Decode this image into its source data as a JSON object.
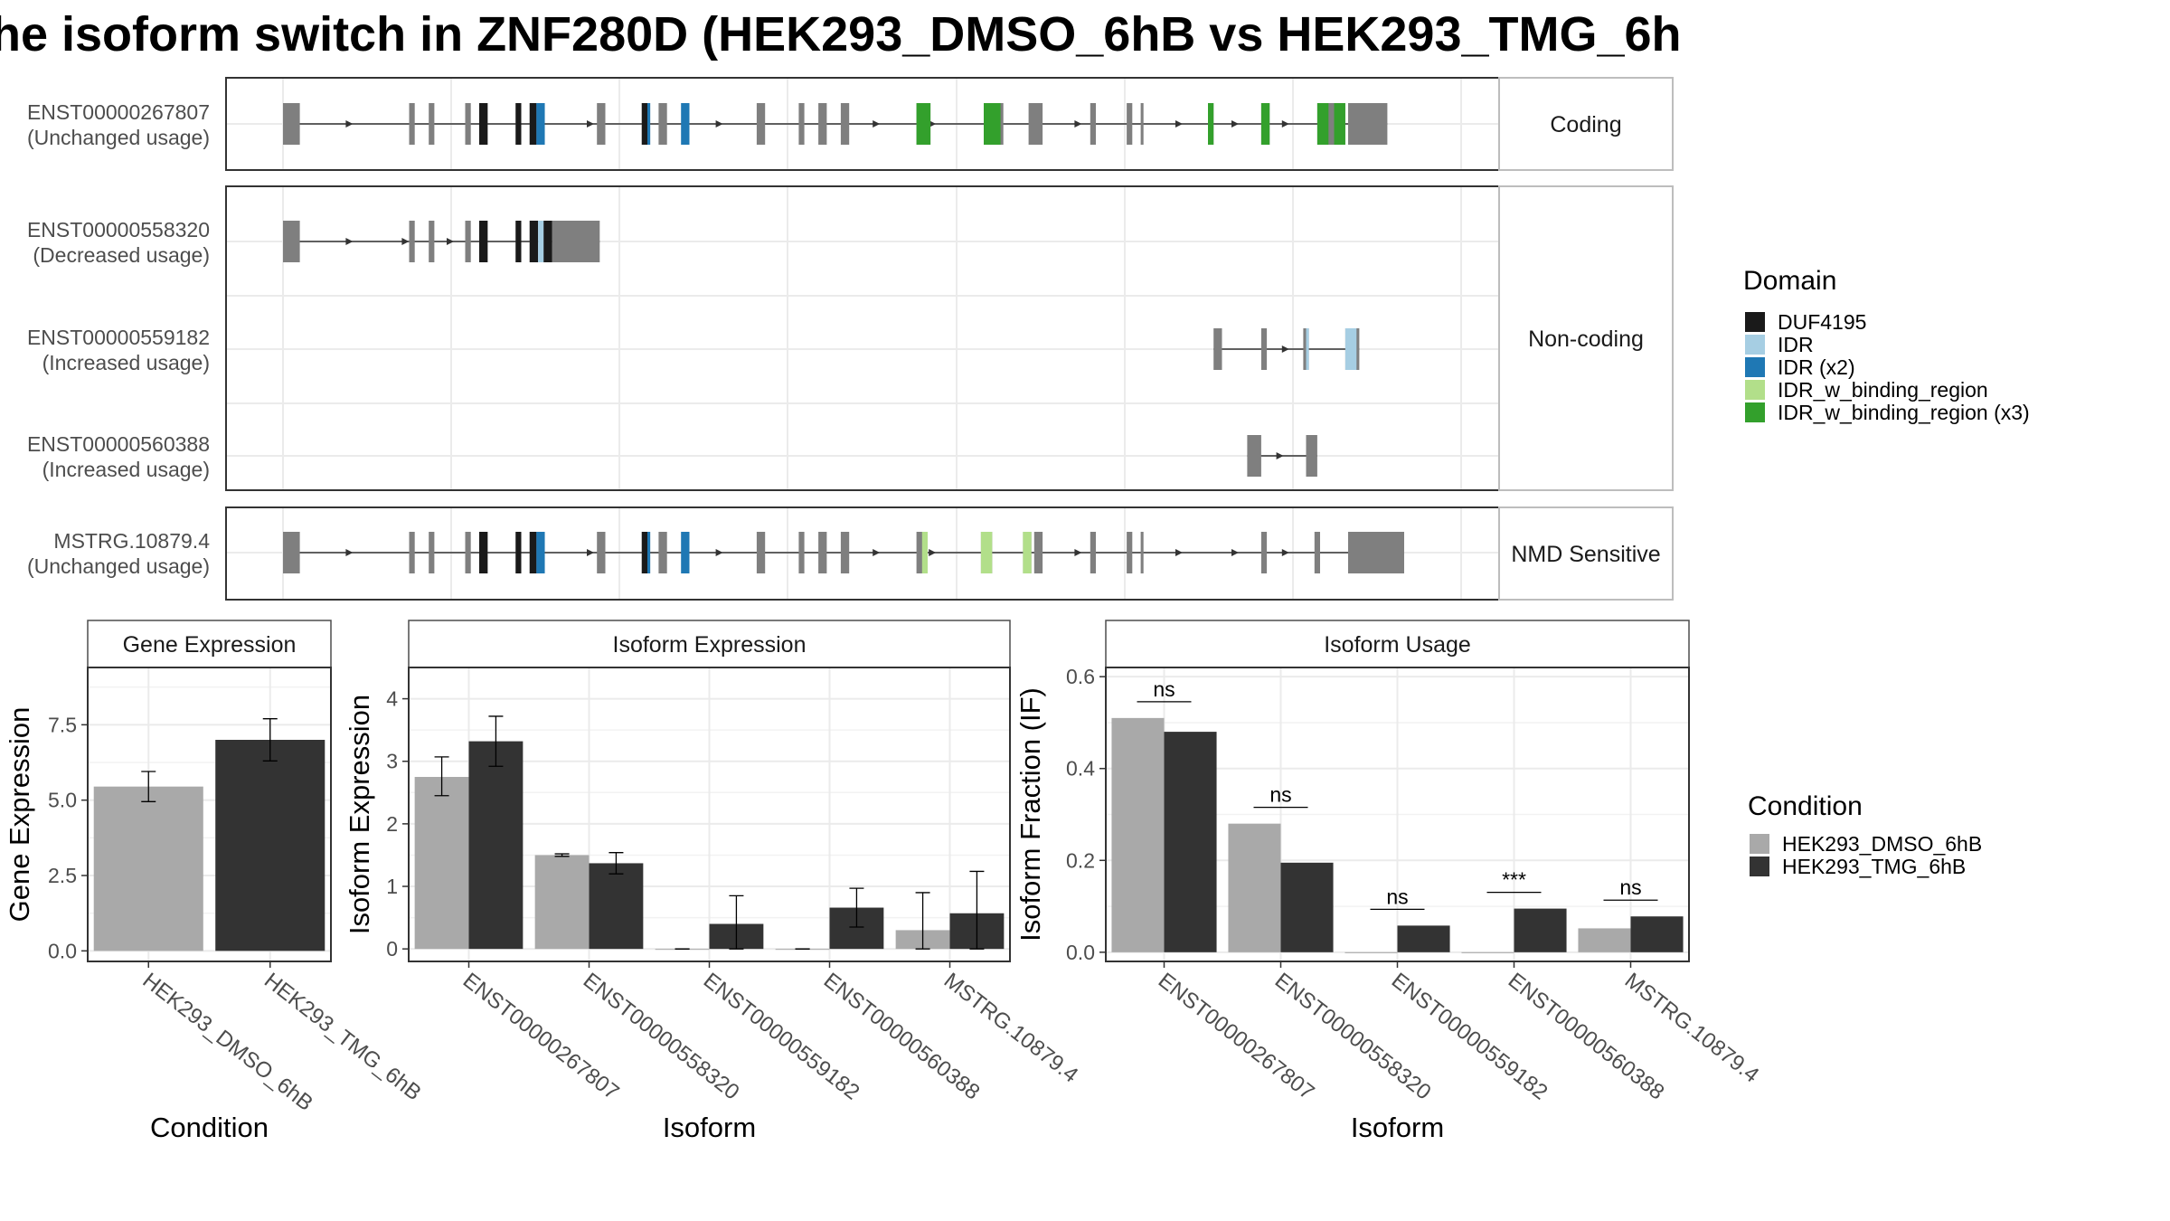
{
  "title": "he isoform switch in ZNF280D (HEK293_DMSO_6hB vs HEK293_TMG_6h",
  "colors": {
    "exon": "#7f7f7f",
    "cond1": "#a9a9a9",
    "cond2": "#333333",
    "DUF4195": "#1a1a1a",
    "IDR": "#a6cee3",
    "IDR (x2)": "#1f78b4",
    "IDR_w_binding_region": "#b2df8a",
    "IDR_w_binding_region (x3)": "#33a02c"
  },
  "structure": {
    "panels": [
      {
        "label": "Coding",
        "rows": [
          "ENST00000267807"
        ]
      },
      {
        "label": "Non-coding",
        "rows": [
          "ENST00000558320",
          "ENST00000559182",
          "ENST00000560388"
        ]
      },
      {
        "label": "NMD Sensitive",
        "rows": [
          "MSTRG.10879.4"
        ]
      }
    ],
    "isoforms": [
      {
        "id": "ENST00000267807",
        "usage": "(Unchanged usage)",
        "exons": [
          [
            0,
            0.3
          ],
          [
            2.25,
            2.35
          ],
          [
            2.6,
            2.7
          ],
          [
            3.25,
            3.35
          ],
          [
            3.5,
            3.65
          ],
          [
            4.15,
            4.25
          ],
          [
            4.4,
            4.55
          ],
          [
            5.6,
            5.75
          ],
          [
            6.4,
            6.55
          ],
          [
            6.7,
            6.85
          ],
          [
            8.45,
            8.6
          ],
          [
            9.2,
            9.3
          ],
          [
            9.55,
            9.7
          ],
          [
            9.95,
            10.1
          ],
          [
            11.3,
            11.55
          ],
          [
            12.5,
            12.85
          ],
          [
            13.3,
            13.55
          ],
          [
            14.4,
            14.5
          ],
          [
            15.05,
            15.15
          ],
          [
            15.3,
            15.35
          ],
          [
            16.5,
            16.6
          ],
          [
            17.45,
            17.6
          ],
          [
            18.45,
            18.95
          ],
          [
            19,
            19.7
          ]
        ],
        "domains": [
          [
            "DUF4195",
            [
              3.5,
              3.65
            ]
          ],
          [
            "DUF4195",
            [
              4.15,
              4.25
            ]
          ],
          [
            "DUF4195",
            [
              4.4,
              4.52
            ]
          ],
          [
            "IDR (x2)",
            [
              4.52,
              4.67
            ]
          ],
          [
            "DUF4195",
            [
              6.4,
              6.5
            ]
          ],
          [
            "IDR (x2)",
            [
              6.5,
              6.55
            ]
          ],
          [
            "IDR (x2)",
            [
              7.1,
              7.25
            ]
          ],
          [
            "IDR_w_binding_region (x3)",
            [
              11.3,
              11.55
            ]
          ],
          [
            "IDR_w_binding_region (x3)",
            [
              12.5,
              12.8
            ]
          ],
          [
            "IDR_w_binding_region (x3)",
            [
              16.5,
              16.6
            ]
          ],
          [
            "IDR_w_binding_region (x3)",
            [
              17.45,
              17.6
            ]
          ],
          [
            "IDR_w_binding_region (x3)",
            [
              18.45,
              18.65
            ]
          ],
          [
            "IDR_w_binding_region (x3)",
            [
              18.75,
              18.95
            ]
          ]
        ],
        "arrows": [
          1.2,
          5.5,
          7.8,
          10.6,
          11.6,
          14.2,
          16.0,
          17.0,
          17.9
        ]
      },
      {
        "id": "ENST00000558320",
        "usage": "(Decreased usage)",
        "exons": [
          [
            0,
            0.3
          ],
          [
            2.25,
            2.35
          ],
          [
            2.6,
            2.7
          ],
          [
            3.25,
            3.35
          ],
          [
            3.5,
            3.65
          ],
          [
            4.15,
            4.25
          ],
          [
            4.4,
            4.55
          ],
          [
            4.6,
            4.8
          ],
          [
            4.8,
            5.65
          ]
        ],
        "domains": [
          [
            "DUF4195",
            [
              3.5,
              3.65
            ]
          ],
          [
            "DUF4195",
            [
              4.15,
              4.25
            ]
          ],
          [
            "DUF4195",
            [
              4.4,
              4.55
            ]
          ],
          [
            "IDR",
            [
              4.55,
              4.65
            ]
          ],
          [
            "DUF4195",
            [
              4.65,
              4.8
            ]
          ]
        ],
        "arrows": [
          1.2,
          2.2,
          3.0
        ]
      },
      {
        "id": "ENST00000559182",
        "usage": "(Increased usage)",
        "exons": [
          [
            16.6,
            16.75
          ],
          [
            17.45,
            17.55
          ],
          [
            18.2,
            18.3
          ],
          [
            18.95,
            19.2
          ]
        ],
        "domains": [
          [
            "IDR",
            [
              18.25,
              18.3
            ]
          ],
          [
            "IDR",
            [
              18.95,
              19.15
            ]
          ]
        ],
        "arrows": [
          17.9
        ]
      },
      {
        "id": "ENST00000560388",
        "usage": "(Increased usage)",
        "exons": [
          [
            17.2,
            17.45
          ],
          [
            18.25,
            18.45
          ]
        ],
        "domains": [],
        "arrows": [
          17.8
        ]
      },
      {
        "id": "MSTRG.10879.4",
        "usage": "(Unchanged usage)",
        "exons": [
          [
            0,
            0.3
          ],
          [
            2.25,
            2.35
          ],
          [
            2.6,
            2.7
          ],
          [
            3.25,
            3.35
          ],
          [
            3.5,
            3.65
          ],
          [
            4.15,
            4.25
          ],
          [
            4.4,
            4.55
          ],
          [
            5.6,
            5.75
          ],
          [
            6.4,
            6.55
          ],
          [
            6.7,
            6.85
          ],
          [
            8.45,
            8.6
          ],
          [
            9.2,
            9.3
          ],
          [
            9.55,
            9.7
          ],
          [
            9.95,
            10.1
          ],
          [
            11.3,
            11.5
          ],
          [
            12.45,
            12.65
          ],
          [
            13.2,
            13.35
          ],
          [
            13.4,
            13.55
          ],
          [
            14.4,
            14.5
          ],
          [
            15.05,
            15.15
          ],
          [
            15.3,
            15.35
          ],
          [
            17.45,
            17.55
          ],
          [
            18.4,
            18.5
          ],
          [
            19.0,
            20.0
          ]
        ],
        "domains": [
          [
            "DUF4195",
            [
              3.5,
              3.65
            ]
          ],
          [
            "DUF4195",
            [
              4.15,
              4.25
            ]
          ],
          [
            "DUF4195",
            [
              4.4,
              4.52
            ]
          ],
          [
            "IDR (x2)",
            [
              4.52,
              4.67
            ]
          ],
          [
            "DUF4195",
            [
              6.4,
              6.5
            ]
          ],
          [
            "IDR (x2)",
            [
              6.5,
              6.55
            ]
          ],
          [
            "IDR (x2)",
            [
              7.1,
              7.25
            ]
          ],
          [
            "IDR_w_binding_region",
            [
              11.4,
              11.5
            ]
          ],
          [
            "IDR_w_binding_region",
            [
              12.45,
              12.65
            ]
          ],
          [
            "IDR_w_binding_region",
            [
              13.2,
              13.35
            ]
          ]
        ],
        "arrows": [
          1.2,
          5.5,
          7.8,
          10.6,
          11.6,
          14.2,
          16.0,
          17.0,
          17.9
        ]
      }
    ]
  },
  "domain_legend": {
    "title": "Domain",
    "items": [
      "DUF4195",
      "IDR",
      "IDR (x2)",
      "IDR_w_binding_region",
      "IDR_w_binding_region (x3)"
    ]
  },
  "condition_legend": {
    "title": "Condition",
    "items": [
      "HEK293_DMSO_6hB",
      "HEK293_TMG_6hB"
    ]
  },
  "chart_data": [
    {
      "type": "bar",
      "title": "Gene Expression",
      "xlabel": "Condition",
      "ylabel": "Gene Expression",
      "categories": [
        "HEK293_DMSO_6hB",
        "HEK293_TMG_6hB"
      ],
      "values": [
        5.45,
        7.0
      ],
      "errors": [
        [
          4.95,
          5.95
        ],
        [
          6.3,
          7.7
        ]
      ],
      "yticks": [
        "0.0",
        "2.5",
        "5.0",
        "7.5"
      ],
      "ylim": [
        -0.35,
        9.4
      ],
      "grid": true
    },
    {
      "type": "bar",
      "title": "Isoform Expression",
      "xlabel": "Isoform",
      "ylabel": "Isoform Expression",
      "categories": [
        "ENST00000267807",
        "ENST00000558320",
        "ENST00000559182",
        "ENST00000560388",
        "MSTRG.10879.4"
      ],
      "series": [
        {
          "name": "HEK293_DMSO_6hB",
          "values": [
            2.75,
            1.5,
            0.0,
            0.0,
            0.3
          ],
          "errors": [
            [
              2.45,
              3.07
            ],
            [
              1.48,
              1.52
            ],
            [
              0.0,
              0.0
            ],
            [
              0.0,
              0.0
            ],
            [
              0.0,
              0.9
            ]
          ]
        },
        {
          "name": "HEK293_TMG_6hB",
          "values": [
            3.32,
            1.37,
            0.4,
            0.66,
            0.57
          ],
          "errors": [
            [
              2.92,
              3.72
            ],
            [
              1.2,
              1.54
            ],
            [
              0.0,
              0.85
            ],
            [
              0.35,
              0.97
            ],
            [
              0.0,
              1.24
            ]
          ]
        }
      ],
      "yticks": [
        "0",
        "1",
        "2",
        "3",
        "4"
      ],
      "ylim": [
        -0.2,
        4.5
      ],
      "grid": true
    },
    {
      "type": "bar",
      "title": "Isoform Usage",
      "xlabel": "Isoform",
      "ylabel": "Isoform Fraction (IF)",
      "categories": [
        "ENST00000267807",
        "ENST00000558320",
        "ENST00000559182",
        "ENST00000560388",
        "MSTRG.10879.4"
      ],
      "series": [
        {
          "name": "HEK293_DMSO_6hB",
          "values": [
            0.51,
            0.28,
            0.0,
            0.0,
            0.052
          ]
        },
        {
          "name": "HEK293_TMG_6hB",
          "values": [
            0.48,
            0.195,
            0.058,
            0.095,
            0.078
          ]
        }
      ],
      "significance": [
        "ns",
        "ns",
        "ns",
        "***",
        "ns"
      ],
      "yticks": [
        "0.0",
        "0.2",
        "0.4",
        "0.6"
      ],
      "ylim": [
        -0.02,
        0.62
      ],
      "grid": true
    }
  ]
}
